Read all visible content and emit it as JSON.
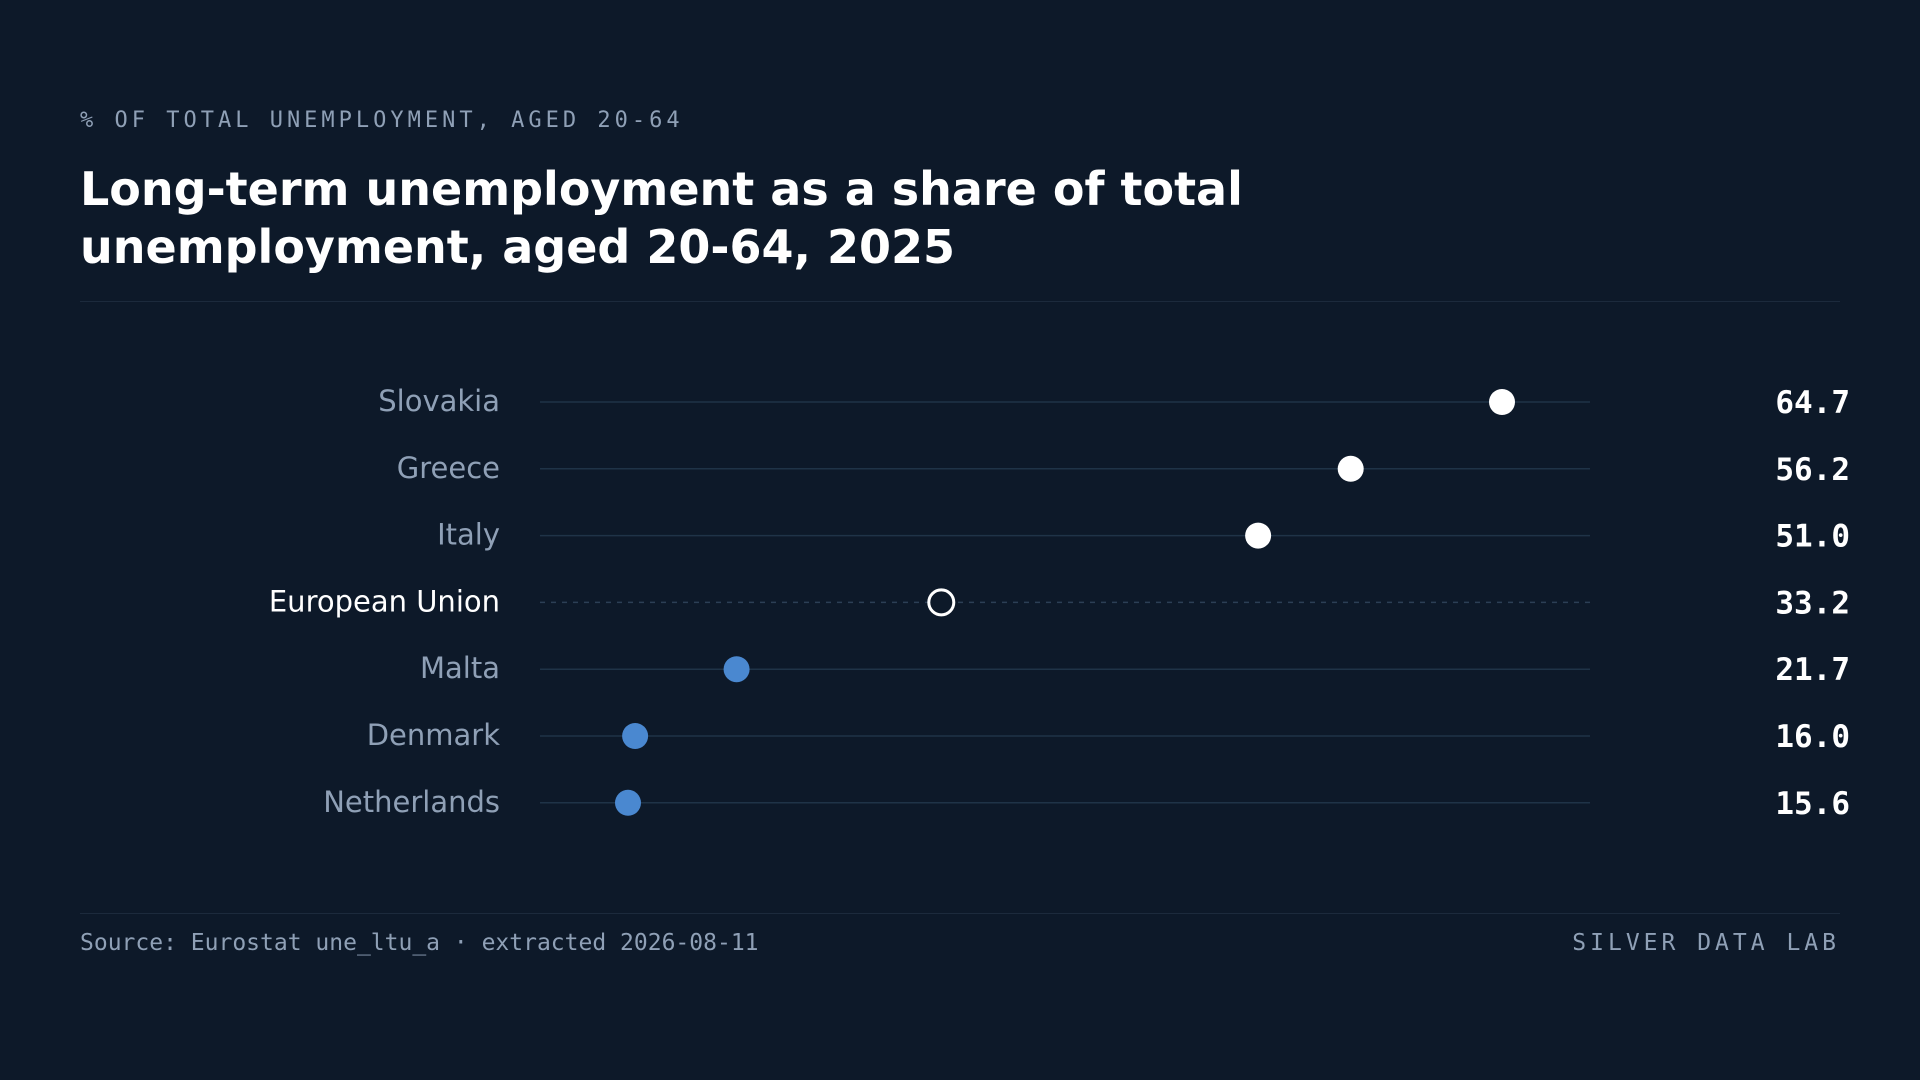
{
  "header": {
    "eyebrow": "% OF TOTAL UNEMPLOYMENT, AGED 20-64",
    "title": "Long-term unemployment as a share of total unemployment, aged 20-64, 2025"
  },
  "footer": {
    "source": "Source: Eurostat une_ltu_a · extracted 2026-08-11",
    "brand": "SILVER DATA LAB"
  },
  "colors": {
    "background": "#0d1929",
    "high": "#ffffff",
    "low": "#4a88d0",
    "reference": "#ffffff",
    "track": "#1f3347",
    "label": "#8fa0b6",
    "reference_label": "#ffffff",
    "value": "#ffffff"
  },
  "chart_data": {
    "type": "scatter",
    "subtype": "dot-plot",
    "title": "Long-term unemployment as a share of total unemployment, aged 20-64, 2025",
    "unit": "% of total unemployment",
    "xlim": [
      10,
      70
    ],
    "grid": false,
    "legend": "none",
    "rows": [
      {
        "label": "Slovakia",
        "value": 64.7,
        "display": "64.7",
        "group": "high"
      },
      {
        "label": "Greece",
        "value": 56.2,
        "display": "56.2",
        "group": "high"
      },
      {
        "label": "Italy",
        "value": 51.0,
        "display": "51.0",
        "group": "high"
      },
      {
        "label": "European Union",
        "value": 33.2,
        "display": "33.2",
        "group": "reference"
      },
      {
        "label": "Malta",
        "value": 21.7,
        "display": "21.7",
        "group": "low"
      },
      {
        "label": "Denmark",
        "value": 16.0,
        "display": "16.0",
        "group": "low"
      },
      {
        "label": "Netherlands",
        "value": 15.6,
        "display": "15.6",
        "group": "low"
      }
    ]
  }
}
